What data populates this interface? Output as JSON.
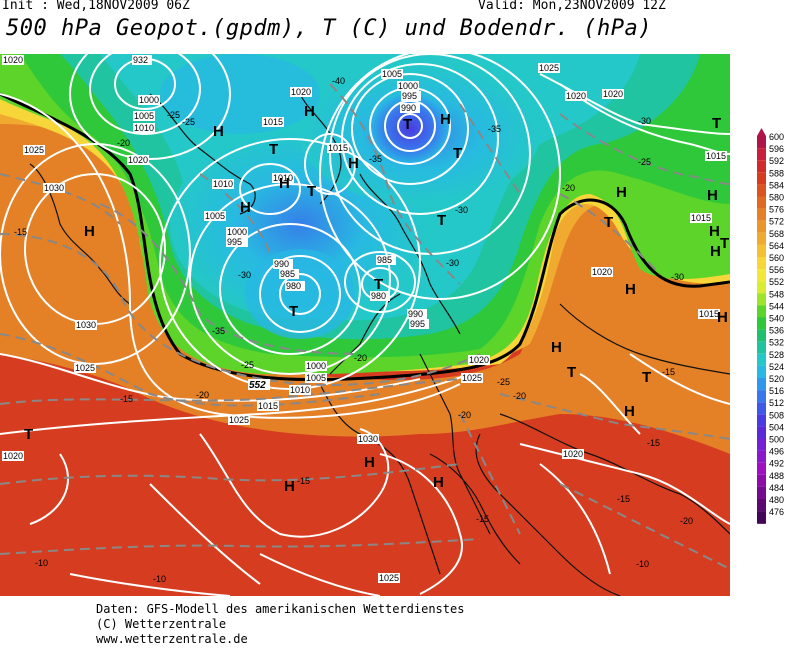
{
  "header": {
    "init": "Init : Wed,18NOV2009 06Z",
    "valid": "Valid: Mon,23NOV2009 12Z",
    "title": "500 hPa Geopot.(gpdm), T (C) und Bodendr. (hPa)"
  },
  "legend": {
    "levels": [
      "600",
      "596",
      "592",
      "588",
      "584",
      "580",
      "576",
      "572",
      "568",
      "564",
      "560",
      "556",
      "552",
      "548",
      "544",
      "540",
      "536",
      "532",
      "528",
      "524",
      "520",
      "516",
      "512",
      "508",
      "504",
      "500",
      "496",
      "492",
      "488",
      "484",
      "480",
      "476"
    ],
    "colors": [
      "#b0154a",
      "#c81e3c",
      "#d02a2a",
      "#d63c20",
      "#dc5220",
      "#e06a22",
      "#e48026",
      "#ea962a",
      "#f0aa30",
      "#f4c034",
      "#f6d638",
      "#f2e838",
      "#d8ec30",
      "#9ee42a",
      "#5cd42a",
      "#2ec83a",
      "#20c070",
      "#20c4a0",
      "#24c8c8",
      "#28b8e4",
      "#3098ec",
      "#3878ec",
      "#4058e8",
      "#4a3ce0",
      "#5a2ad8",
      "#7420d4",
      "#8c18cc",
      "#a010c0",
      "#8e0ca8",
      "#760a8e",
      "#5c0872",
      "#440658"
    ]
  },
  "map": {
    "pressure_labels": [
      "1020",
      "932",
      "1000",
      "1005",
      "1010",
      "1020",
      "1025",
      "1030",
      "1020",
      "1015",
      "1010",
      "1005",
      "1000",
      "995",
      "990",
      "985",
      "980",
      "1005",
      "1000",
      "995",
      "990",
      "1015",
      "1010",
      "1000",
      "1005",
      "1010",
      "1015",
      "1025",
      "1020",
      "1030",
      "1025",
      "1030",
      "1025",
      "1020",
      "1015",
      "1020",
      "1025",
      "1020",
      "1020",
      "1015",
      "1015",
      "1020",
      "1025",
      "980",
      "985",
      "990",
      "995",
      "1000"
    ],
    "temp_labels": [
      "-15",
      "-20",
      "-25",
      "-30",
      "-35",
      "-40",
      "-35",
      "-30",
      "-25",
      "-20",
      "-15",
      "-10",
      "-15",
      "-20",
      "-25",
      "-30",
      "-35",
      "-30",
      "-25",
      "-20",
      "-15",
      "-10",
      "-15",
      "-20",
      "-25",
      "-30",
      "-15",
      "-20",
      "-15",
      "-10",
      "-20"
    ],
    "highs": [
      "H",
      "H",
      "H",
      "H",
      "H",
      "H",
      "H",
      "H",
      "H",
      "H",
      "H",
      "H",
      "H",
      "H",
      "H",
      "H",
      "H",
      "H"
    ],
    "lows": [
      "T",
      "T",
      "T",
      "T",
      "T",
      "T",
      "T",
      "T",
      "T",
      "T",
      "T",
      "T",
      "T"
    ],
    "contour_label": "552"
  },
  "footer": {
    "line1": "Daten: GFS-Modell des amerikanischen Wetterdienstes",
    "line2": "(C) Wetterzentrale",
    "line3": "www.wetterzentrale.de"
  }
}
